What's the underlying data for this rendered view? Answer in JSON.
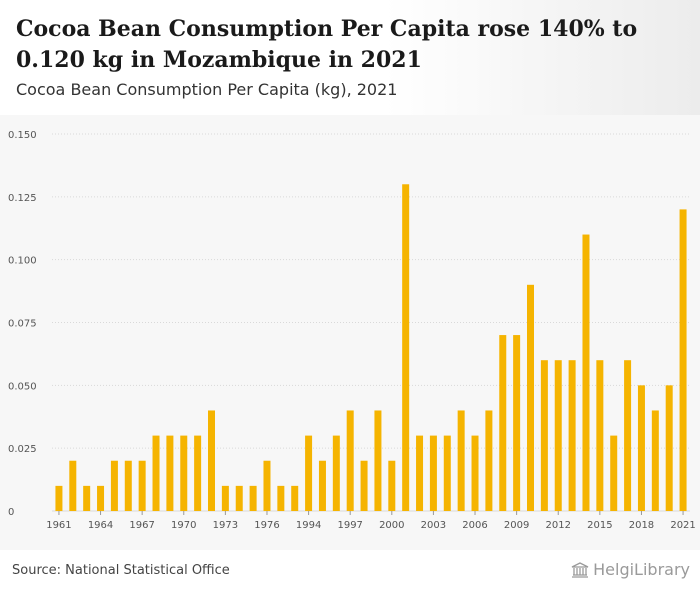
{
  "header": {
    "title": "Cocoa Bean Consumption Per Capita rose 140% to 0.120 kg in Mozambique in 2021",
    "subtitle": "Cocoa Bean Consumption Per Capita (kg), 2021"
  },
  "footer": {
    "source": "Source: National Statistical Office",
    "brand": "HelgiLibrary"
  },
  "colors": {
    "bar": "#f5b400",
    "grid": "#d9d9d9",
    "tick": "#555555"
  },
  "chart_data": {
    "type": "bar",
    "title": "Cocoa Bean Consumption Per Capita (kg), 2021",
    "xlabel": "",
    "ylabel": "",
    "ylim": [
      0,
      0.15
    ],
    "yticks": [
      0,
      0.025,
      0.05,
      0.075,
      0.1,
      0.125,
      0.15
    ],
    "ytick_labels": [
      "0",
      "0.025",
      "0.050",
      "0.075",
      "0.100",
      "0.125",
      "0.150"
    ],
    "xtick_labels": [
      "1961",
      "1964",
      "1967",
      "1970",
      "1973",
      "1976",
      "1994",
      "1997",
      "2000",
      "2003",
      "2006",
      "2009",
      "2012",
      "2015",
      "2018",
      "2021"
    ],
    "xtick_every": 3,
    "categories": [
      "1961",
      "1962",
      "1963",
      "1964",
      "1965",
      "1966",
      "1967",
      "1968",
      "1969",
      "1970",
      "1971",
      "1972",
      "1973",
      "1974",
      "1975",
      "1976",
      "1977",
      "1978",
      "1994",
      "1995",
      "1996",
      "1997",
      "1998",
      "1999",
      "2000",
      "2001",
      "2002",
      "2003",
      "2004",
      "2005",
      "2006",
      "2007",
      "2008",
      "2009",
      "2010",
      "2011",
      "2012",
      "2013",
      "2014",
      "2015",
      "2016",
      "2017",
      "2018",
      "2019",
      "2020",
      "2021"
    ],
    "values": [
      0.01,
      0.02,
      0.01,
      0.01,
      0.02,
      0.02,
      0.02,
      0.03,
      0.03,
      0.03,
      0.03,
      0.04,
      0.01,
      0.01,
      0.01,
      0.02,
      0.01,
      0.01,
      0.03,
      0.02,
      0.03,
      0.04,
      0.02,
      0.04,
      0.02,
      0.13,
      0.03,
      0.03,
      0.03,
      0.04,
      0.03,
      0.04,
      0.07,
      0.07,
      0.09,
      0.06,
      0.06,
      0.06,
      0.11,
      0.06,
      0.03,
      0.06,
      0.05,
      0.04,
      0.05,
      0.12
    ]
  }
}
